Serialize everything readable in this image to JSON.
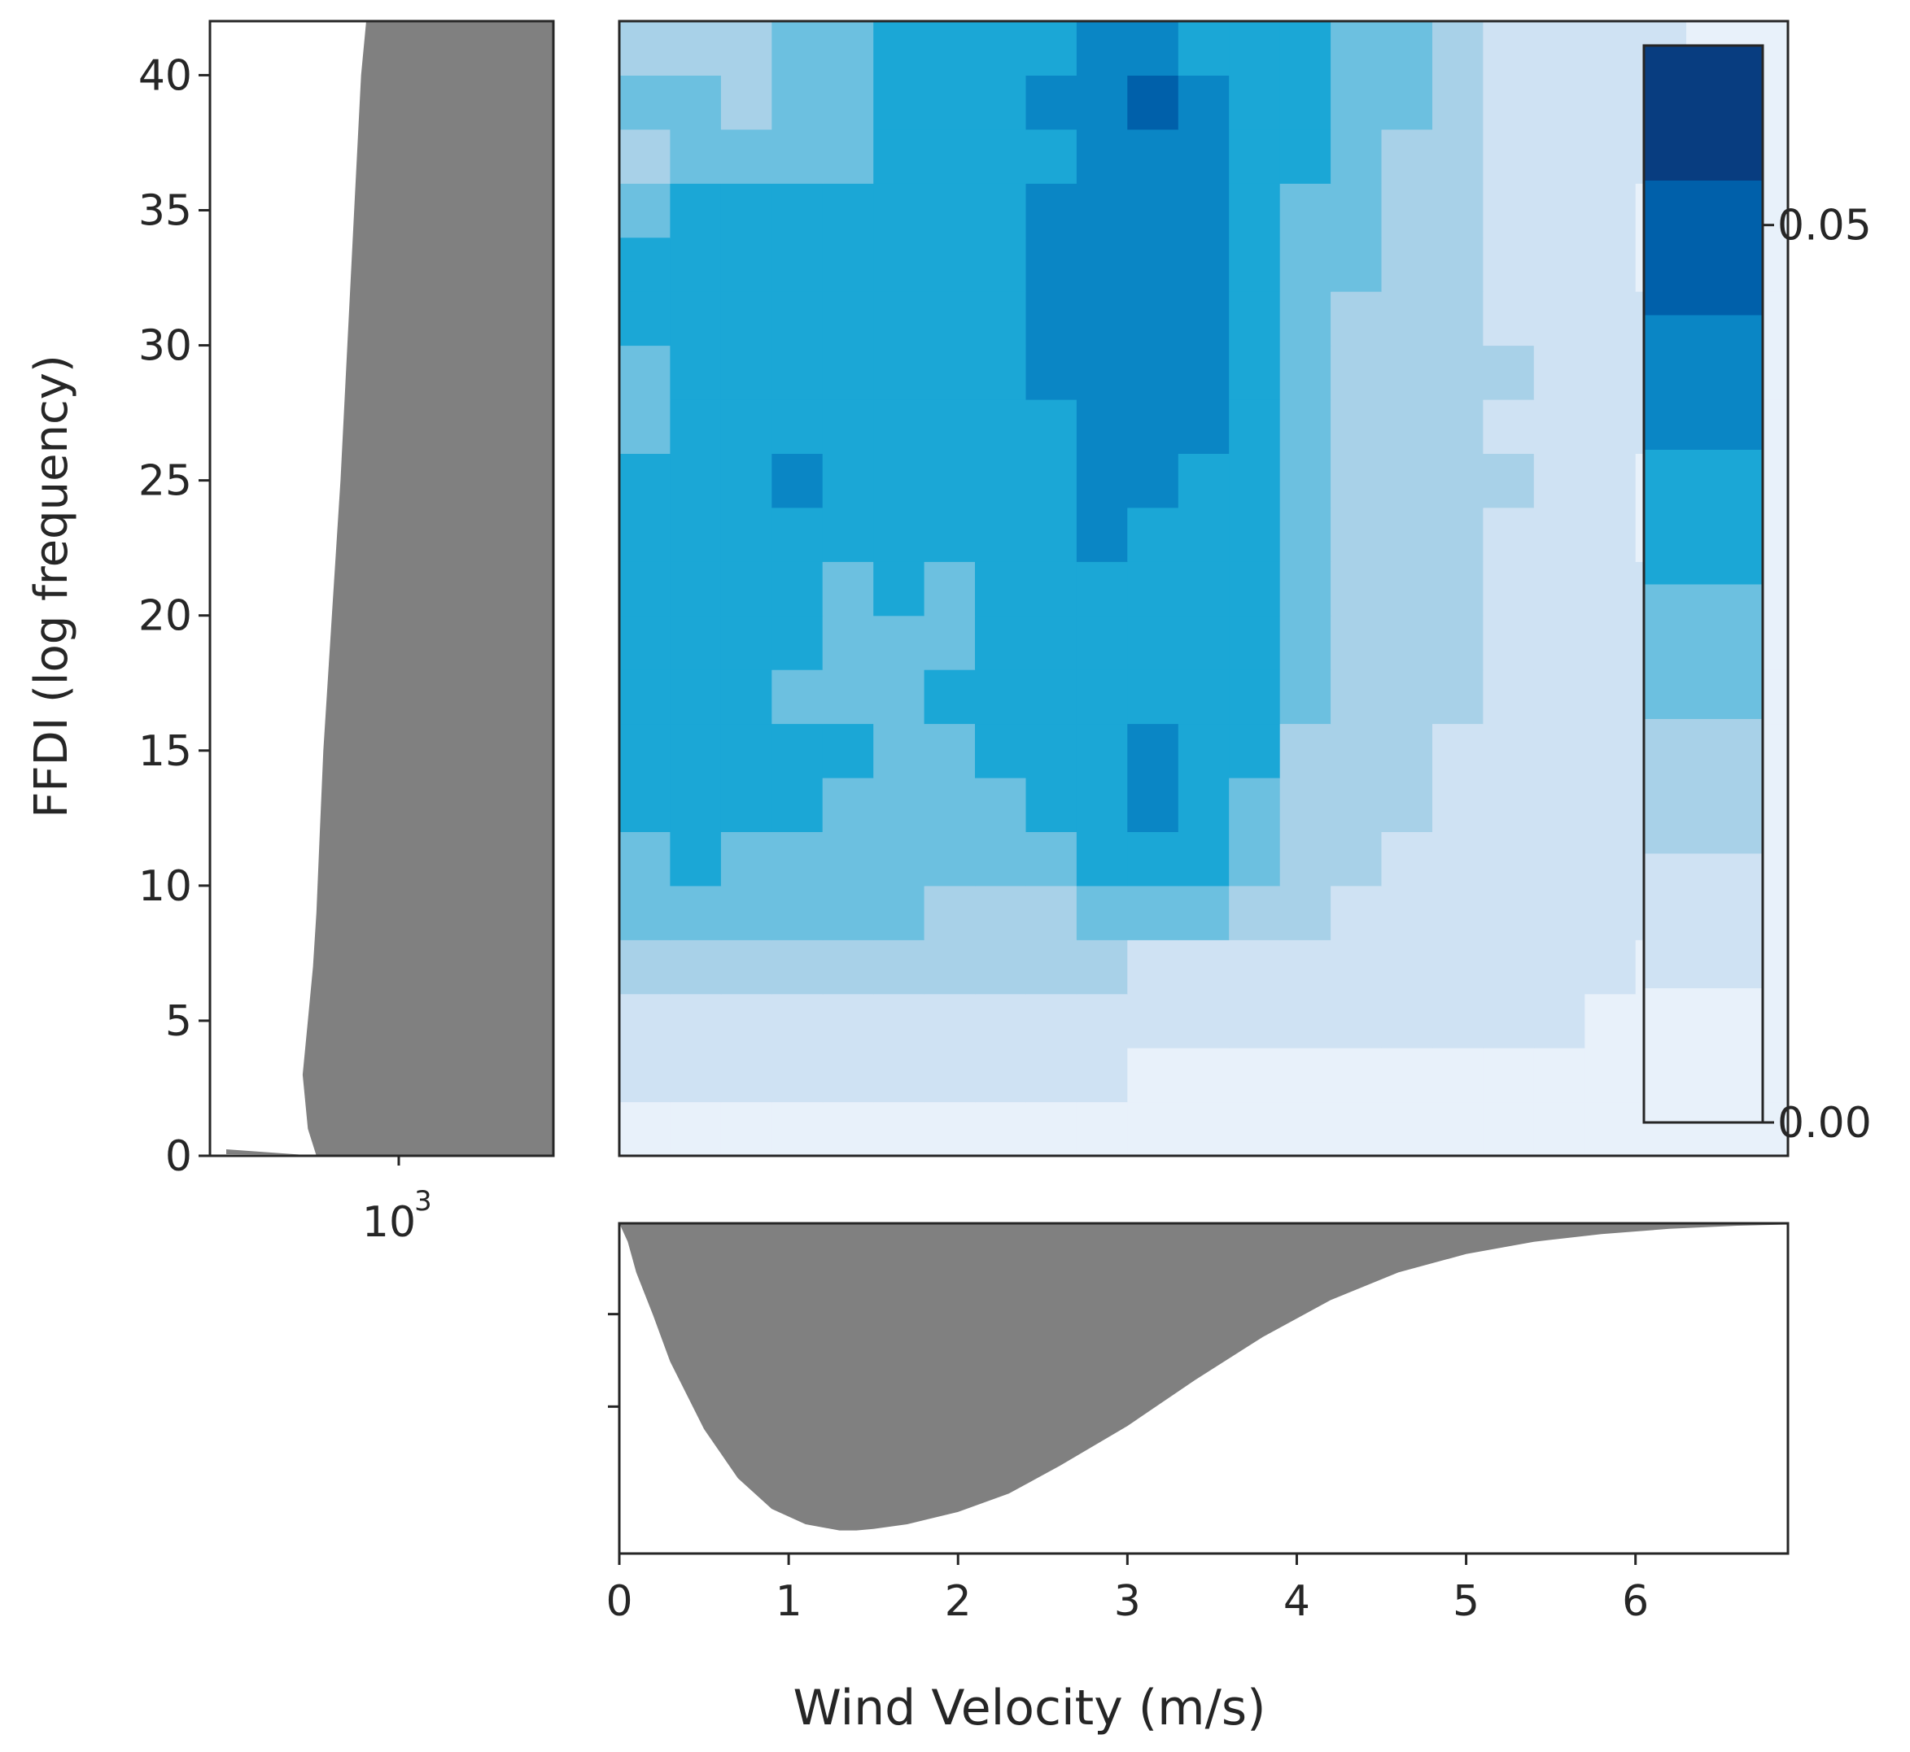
{
  "chart_data": [
    {
      "type": "area",
      "panel": "left marginal",
      "orientation": "horizontal",
      "x_scale": "log",
      "xticks": [
        {
          "value": 1000,
          "label": "10",
          "exponent": "3"
        }
      ],
      "ylabel": "FFDI (log frequency)",
      "ylim": [
        0,
        42
      ],
      "yticks": [
        0,
        5,
        10,
        15,
        20,
        25,
        30,
        35,
        40
      ],
      "ffdi": [
        0,
        0.3,
        1,
        2,
        3,
        4,
        5,
        6,
        8,
        10,
        12,
        15,
        20,
        25,
        30,
        35,
        40,
        42
      ],
      "log_frequency": [
        3.5,
        3.14,
        3.11,
        3.09,
        3.08,
        3.08,
        3.08,
        3.08,
        3.08,
        3.08,
        3.08,
        3.08,
        3.08,
        3.08,
        3.08,
        3.08,
        3.08,
        3.08
      ],
      "edge_ffdi": [
        0,
        1,
        3,
        5,
        7,
        9,
        12,
        15,
        20,
        25,
        30,
        35,
        40,
        42
      ],
      "edge_frac": [
        0.31,
        0.285,
        0.27,
        0.285,
        0.3,
        0.31,
        0.32,
        0.33,
        0.355,
        0.38,
        0.4,
        0.42,
        0.44,
        0.455
      ],
      "fill_color": "#808080"
    },
    {
      "type": "heatmap",
      "panel": "main",
      "xlim": [
        0,
        6.9
      ],
      "ylim": [
        0,
        42
      ],
      "colorbar": {
        "ticks": [
          0.0,
          0.05
        ],
        "tick_labels": [
          "0.00",
          "0.05"
        ],
        "range": [
          0,
          0.06
        ],
        "levels": 8,
        "colors": [
          "#e8f1fa",
          "#cfe2f3",
          "#a8d1e8",
          "#6cc0e0",
          "#1ba7d6",
          "#0a86c5",
          "#0060aa",
          "#083d80"
        ]
      },
      "y_bins": [
        0,
        2,
        4,
        6,
        8,
        10,
        12,
        14,
        16,
        18,
        20,
        22,
        24,
        26,
        28,
        30,
        32,
        34,
        36,
        38,
        40,
        42
      ],
      "x_bins": [
        0,
        0.3,
        0.6,
        0.9,
        1.2,
        1.5,
        1.8,
        2.1,
        2.4,
        2.7,
        3.0,
        3.3,
        3.6,
        3.9,
        4.2,
        4.5,
        4.8,
        5.1,
        5.4,
        5.7,
        6.0,
        6.3,
        6.6,
        6.9
      ],
      "level_grid": [
        [
          0,
          0,
          0,
          0,
          0,
          0,
          0,
          0,
          0,
          0,
          0,
          0,
          0,
          0,
          0,
          0,
          0,
          0,
          0,
          0,
          0,
          0,
          0
        ],
        [
          1,
          1,
          1,
          1,
          1,
          1,
          1,
          1,
          1,
          1,
          0,
          0,
          0,
          0,
          0,
          0,
          0,
          0,
          0,
          0,
          0,
          0,
          0
        ],
        [
          1,
          1,
          1,
          1,
          1,
          1,
          1,
          1,
          1,
          1,
          1,
          1,
          1,
          1,
          1,
          1,
          1,
          1,
          1,
          0,
          0,
          0,
          0
        ],
        [
          2,
          2,
          2,
          2,
          2,
          2,
          2,
          2,
          2,
          2,
          1,
          1,
          1,
          1,
          1,
          1,
          1,
          1,
          1,
          1,
          0,
          0,
          0
        ],
        [
          3,
          3,
          3,
          3,
          3,
          3,
          2,
          2,
          2,
          3,
          3,
          3,
          2,
          2,
          1,
          1,
          1,
          1,
          1,
          1,
          1,
          0,
          0
        ],
        [
          3,
          4,
          3,
          3,
          3,
          3,
          3,
          3,
          3,
          4,
          4,
          4,
          3,
          2,
          2,
          1,
          1,
          1,
          1,
          1,
          1,
          0,
          0
        ],
        [
          4,
          4,
          4,
          4,
          3,
          3,
          3,
          3,
          4,
          4,
          5,
          4,
          3,
          2,
          2,
          2,
          1,
          1,
          1,
          1,
          1,
          0,
          0
        ],
        [
          4,
          4,
          4,
          4,
          4,
          3,
          3,
          4,
          4,
          4,
          5,
          4,
          4,
          2,
          2,
          2,
          1,
          1,
          1,
          1,
          1,
          1,
          0
        ],
        [
          4,
          4,
          4,
          3,
          3,
          3,
          4,
          4,
          4,
          4,
          4,
          4,
          4,
          3,
          2,
          2,
          2,
          1,
          1,
          1,
          1,
          1,
          0
        ],
        [
          4,
          4,
          4,
          4,
          3,
          3,
          3,
          4,
          4,
          4,
          4,
          4,
          4,
          3,
          2,
          2,
          2,
          1,
          1,
          1,
          1,
          1,
          0
        ],
        [
          4,
          4,
          4,
          4,
          3,
          4,
          3,
          4,
          4,
          4,
          4,
          4,
          4,
          3,
          2,
          2,
          2,
          1,
          1,
          1,
          1,
          0,
          0
        ],
        [
          4,
          4,
          4,
          4,
          4,
          4,
          4,
          4,
          4,
          5,
          4,
          4,
          4,
          3,
          2,
          2,
          2,
          1,
          1,
          1,
          0,
          0,
          0
        ],
        [
          4,
          4,
          4,
          5,
          4,
          4,
          4,
          4,
          4,
          5,
          5,
          4,
          4,
          3,
          2,
          2,
          2,
          2,
          1,
          1,
          0,
          0,
          0
        ],
        [
          3,
          4,
          4,
          4,
          4,
          4,
          4,
          4,
          4,
          5,
          5,
          5,
          4,
          3,
          2,
          2,
          2,
          1,
          1,
          1,
          1,
          0,
          0
        ],
        [
          3,
          4,
          4,
          4,
          4,
          4,
          4,
          4,
          5,
          5,
          5,
          5,
          4,
          3,
          2,
          2,
          2,
          2,
          1,
          1,
          1,
          0,
          0
        ],
        [
          4,
          4,
          4,
          4,
          4,
          4,
          4,
          4,
          5,
          5,
          5,
          5,
          4,
          3,
          2,
          2,
          2,
          1,
          1,
          1,
          1,
          0,
          0
        ],
        [
          4,
          4,
          4,
          4,
          4,
          4,
          4,
          4,
          5,
          5,
          5,
          5,
          4,
          3,
          3,
          2,
          2,
          1,
          1,
          1,
          0,
          0,
          0
        ],
        [
          3,
          4,
          4,
          4,
          4,
          4,
          4,
          4,
          5,
          5,
          5,
          5,
          4,
          3,
          3,
          2,
          2,
          1,
          1,
          1,
          0,
          0,
          0
        ],
        [
          2,
          3,
          3,
          3,
          3,
          4,
          4,
          4,
          4,
          5,
          5,
          5,
          4,
          4,
          3,
          2,
          2,
          1,
          1,
          1,
          1,
          0,
          0
        ],
        [
          3,
          3,
          2,
          3,
          3,
          4,
          4,
          4,
          5,
          5,
          6,
          5,
          4,
          4,
          3,
          3,
          2,
          1,
          1,
          1,
          1,
          0,
          0
        ],
        [
          2,
          2,
          2,
          3,
          3,
          4,
          4,
          4,
          4,
          5,
          5,
          4,
          4,
          4,
          3,
          3,
          2,
          1,
          1,
          1,
          1,
          0,
          0
        ]
      ]
    },
    {
      "type": "area",
      "panel": "bottom marginal",
      "xlabel": "Wind Velocity (m/s)",
      "xlim": [
        0,
        6.9
      ],
      "xticks": [
        0,
        1,
        2,
        3,
        4,
        5,
        6
      ],
      "y_tick_count": 2,
      "x": [
        0,
        0.05,
        0.1,
        0.2,
        0.3,
        0.5,
        0.7,
        0.9,
        1.1,
        1.3,
        1.4,
        1.5,
        1.7,
        2.0,
        2.3,
        2.6,
        3.0,
        3.4,
        3.8,
        4.2,
        4.6,
        5.0,
        5.4,
        5.8,
        6.2,
        6.6,
        6.9
      ],
      "depth": [
        0.0,
        0.06,
        0.16,
        0.3,
        0.45,
        0.67,
        0.83,
        0.93,
        0.98,
        1.0,
        1.0,
        0.995,
        0.98,
        0.94,
        0.88,
        0.79,
        0.66,
        0.51,
        0.37,
        0.25,
        0.16,
        0.1,
        0.06,
        0.035,
        0.018,
        0.008,
        0.004
      ],
      "fill_color": "#808080"
    }
  ]
}
